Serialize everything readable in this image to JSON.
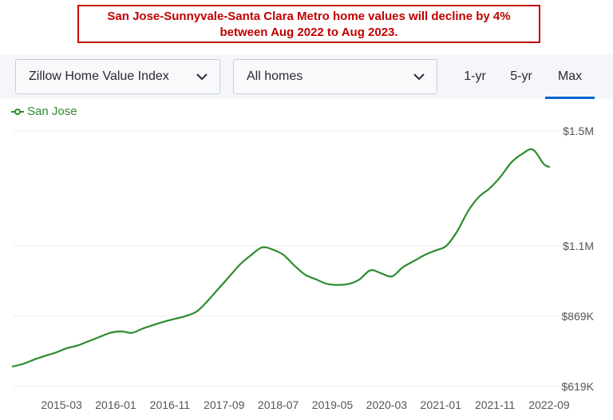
{
  "banner": {
    "line1": "San Jose-Sunnyvale-Santa Clara Metro home values will decline by 4%",
    "line2": "between Aug 2022 to Aug 2023."
  },
  "toolbar": {
    "index_select": "Zillow Home Value Index",
    "type_select": "All homes",
    "ranges": [
      "1-yr",
      "5-yr",
      "Max"
    ],
    "active_range": "Max"
  },
  "legend": {
    "series_name": "San Jose",
    "color": "#2e8b2e"
  },
  "chart_data": {
    "type": "line",
    "title": "",
    "xlabel": "",
    "ylabel": "",
    "x_ticks": [
      "2015-03",
      "2016-01",
      "2016-11",
      "2017-09",
      "2018-07",
      "2019-05",
      "2020-03",
      "2021-01",
      "2021-11",
      "2022-09"
    ],
    "y_ticks": [
      "$619K",
      "$869K",
      "$1.1M",
      "$1.5M"
    ],
    "y_tick_values": [
      619000,
      869000,
      1100000,
      1500000
    ],
    "ylim": [
      619000,
      1500000
    ],
    "grid": "horizontal",
    "series": [
      {
        "name": "San Jose",
        "color": "#2e8b2e",
        "x": [
          "2014-06",
          "2014-08",
          "2014-10",
          "2014-12",
          "2015-02",
          "2015-04",
          "2015-06",
          "2015-08",
          "2015-10",
          "2015-12",
          "2016-02",
          "2016-04",
          "2016-06",
          "2016-08",
          "2016-10",
          "2016-12",
          "2017-02",
          "2017-04",
          "2017-06",
          "2017-08",
          "2017-10",
          "2017-12",
          "2018-02",
          "2018-04",
          "2018-06",
          "2018-08",
          "2018-10",
          "2018-12",
          "2019-02",
          "2019-04",
          "2019-06",
          "2019-08",
          "2019-10",
          "2019-12",
          "2020-02",
          "2020-04",
          "2020-06",
          "2020-08",
          "2020-10",
          "2020-12",
          "2021-02",
          "2021-04",
          "2021-06",
          "2021-08",
          "2021-10",
          "2021-12",
          "2022-02",
          "2022-04",
          "2022-06",
          "2022-08",
          "2022-09"
        ],
        "values": [
          690000,
          700000,
          715000,
          728000,
          740000,
          755000,
          765000,
          780000,
          795000,
          810000,
          815000,
          810000,
          825000,
          838000,
          850000,
          860000,
          870000,
          885000,
          920000,
          960000,
          1000000,
          1040000,
          1070000,
          1095000,
          1088000,
          1070000,
          1035000,
          1005000,
          990000,
          975000,
          972000,
          975000,
          990000,
          1020000,
          1010000,
          1000000,
          1030000,
          1050000,
          1070000,
          1085000,
          1100000,
          1150000,
          1220000,
          1270000,
          1300000,
          1340000,
          1390000,
          1420000,
          1435000,
          1385000,
          1375000
        ]
      }
    ]
  }
}
